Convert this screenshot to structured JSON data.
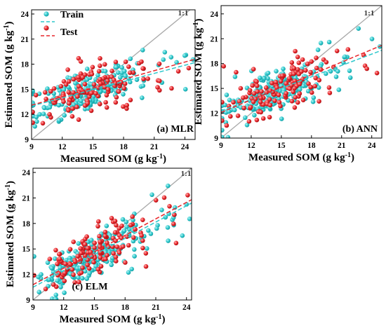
{
  "colors": {
    "train": "#2ec8cc",
    "test": "#e8262b",
    "train_fit": "#2ec8cc",
    "test_fit": "#e8262b",
    "one_one": "#a9a9a9"
  },
  "legend": {
    "train": "Train",
    "test": "Test"
  },
  "chart_data": [
    {
      "type": "scatter",
      "panel_label": "(a) MLR",
      "xlabel": "Measured SOM (g kg-1)",
      "ylabel": "Estimated SOM (g kg-1)",
      "one_one_label": "1:1",
      "xlim": [
        9,
        25
      ],
      "ylim": [
        9,
        24.5
      ],
      "xticks": [
        9,
        12,
        15,
        18,
        21,
        24
      ],
      "yticks": [
        9,
        12,
        15,
        18,
        21,
        24
      ],
      "fit_lines": {
        "train": [
          [
            9,
            13.0
          ],
          [
            25,
            18.2
          ]
        ],
        "test": [
          [
            9,
            13.1
          ],
          [
            25,
            18.6
          ]
        ]
      },
      "series": [
        {
          "name": "Train"
        },
        {
          "name": "Test"
        }
      ]
    },
    {
      "type": "scatter",
      "panel_label": "(b) ANN",
      "xlabel": "Measured SOM (g kg-1)",
      "ylabel": "Estimated SOM (g kg-1)",
      "one_one_label": "1:1",
      "xlim": [
        9,
        25
      ],
      "ylim": [
        9,
        25
      ],
      "xticks": [
        9,
        12,
        15,
        18,
        21,
        24
      ],
      "yticks": [
        9,
        12,
        15,
        18,
        21,
        24
      ],
      "fit_lines": {
        "train": [
          [
            9,
            12.3
          ],
          [
            25,
            19.6
          ]
        ],
        "test": [
          [
            9,
            12.1
          ],
          [
            25,
            20.2
          ]
        ]
      },
      "series": [
        {
          "name": "Train"
        },
        {
          "name": "Test"
        }
      ]
    },
    {
      "type": "scatter",
      "panel_label": "(c) ELM",
      "xlabel": "Measured SOM (g kg-1)",
      "ylabel": "Estimated SOM (g kg-1)",
      "one_one_label": "1:1",
      "xlim": [
        9,
        24.5
      ],
      "ylim": [
        9,
        24.5
      ],
      "xticks": [
        9,
        12,
        15,
        18,
        21,
        24
      ],
      "yticks": [
        9,
        12,
        15,
        18,
        21,
        24
      ],
      "fit_lines": {
        "train": [
          [
            9,
            10.5
          ],
          [
            24.5,
            20.4
          ]
        ],
        "test": [
          [
            9,
            10.8
          ],
          [
            24.5,
            20.8
          ]
        ]
      },
      "series": [
        {
          "name": "Train"
        },
        {
          "name": "Test"
        }
      ]
    }
  ]
}
